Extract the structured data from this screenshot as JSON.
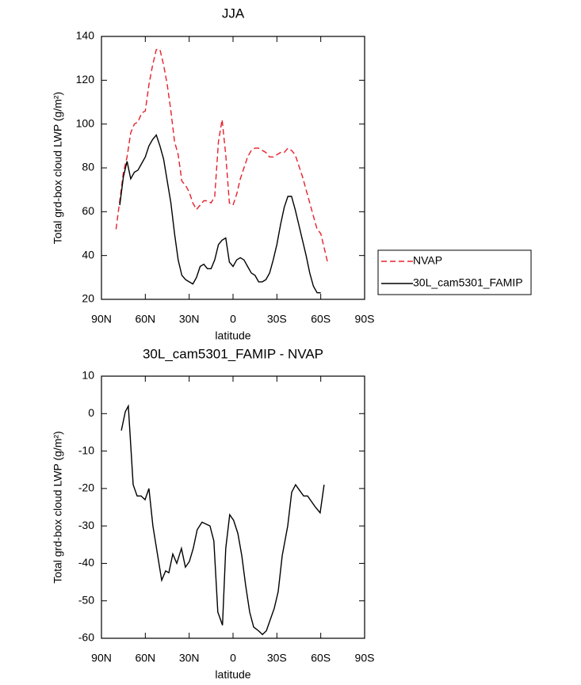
{
  "chart_data": [
    {
      "type": "line",
      "title": "JJA",
      "xlabel": "latitude",
      "ylabel": "Total grd-box cloud LWP (g/m²)",
      "x": [
        80,
        77.5,
        75,
        72.5,
        70,
        67.5,
        65,
        62.5,
        60,
        57.5,
        55,
        52.5,
        50,
        47.5,
        45,
        42.5,
        40,
        37.5,
        35,
        32.5,
        30,
        27.5,
        25,
        22.5,
        20,
        17.5,
        15,
        12.5,
        10,
        7.5,
        5,
        2.5,
        0,
        -2.5,
        -5,
        -7.5,
        -10,
        -12.5,
        -15,
        -17.5,
        -20,
        -22.5,
        -25,
        -27.5,
        -30,
        -32.5,
        -35,
        -37.5,
        -40,
        -42.5,
        -45,
        -47.5,
        -50,
        -52.5,
        -55,
        -57.5,
        -60,
        -62.5,
        -65
      ],
      "series": [
        {
          "name": "NVAP",
          "color": "#e8202a",
          "line_style": "dashed",
          "values": [
            52,
            65,
            78,
            85,
            96,
            100,
            101,
            105,
            106,
            118,
            127,
            134,
            134,
            127,
            118,
            106,
            92,
            86,
            74,
            72,
            69,
            64,
            61,
            63,
            65,
            65,
            64,
            67,
            92,
            102,
            86,
            64,
            63,
            68,
            75,
            80,
            85,
            88,
            89,
            89,
            88,
            87,
            85,
            85,
            86,
            87,
            87,
            89,
            88,
            86,
            81,
            76,
            70,
            64,
            58,
            52,
            50,
            43,
            36
          ]
        },
        {
          "name": "30L_cam5301_FAMIP",
          "color": "#000000",
          "line_style": "solid",
          "values": [
            null,
            63,
            76,
            83,
            75,
            78,
            79,
            82,
            85,
            90,
            93,
            95,
            90,
            84,
            74,
            64,
            50,
            38,
            31,
            29,
            28,
            27,
            30,
            35,
            36,
            34,
            34,
            38,
            45,
            47,
            48,
            37,
            35,
            38,
            39,
            38,
            35,
            32,
            31,
            28,
            28,
            29,
            32,
            38,
            45,
            54,
            62,
            67,
            67,
            61,
            54,
            47,
            40,
            32,
            26,
            23,
            23,
            null,
            null
          ]
        }
      ],
      "xlim": [
        90,
        -90
      ],
      "xticks": [
        {
          "value": 90,
          "label": "90N"
        },
        {
          "value": 60,
          "label": "60N"
        },
        {
          "value": 30,
          "label": "30N"
        },
        0,
        {
          "value": -30,
          "label": "30S"
        },
        {
          "value": -60,
          "label": "60S"
        },
        {
          "value": -90,
          "label": "90S"
        }
      ],
      "ylim": [
        20,
        140
      ],
      "yticks": [
        20,
        40,
        60,
        80,
        100,
        120,
        140
      ],
      "legend": "outside-right"
    },
    {
      "type": "line",
      "title": "30L_cam5301_FAMIP - NVAP",
      "xlabel": "latitude",
      "ylabel": "Total grd-box cloud LWP (g/m²)",
      "x": [
        76.4,
        73.7,
        71.6,
        68.3,
        65.6,
        62.9,
        60.2,
        57.5,
        54.8,
        51.5,
        48.8,
        46.1,
        43.9,
        41.2,
        38.5,
        35.3,
        32.6,
        29.9,
        27.2,
        24.5,
        21.2,
        18.5,
        15.8,
        13.1,
        10.4,
        7.2,
        5,
        2.3,
        -0.4,
        -3.3,
        -6,
        -8.7,
        -11.4,
        -14.1,
        -17.4,
        -20.1,
        -22.8,
        -25.5,
        -28.2,
        -30.9,
        -33.6,
        -37.4,
        -40.1,
        -42.8,
        -45.5,
        -48.3,
        -51,
        -53.7,
        -56.4,
        -59.6,
        -62.3
      ],
      "color": "#000000",
      "values": [
        -4.5,
        0.5,
        2,
        -19,
        -22,
        -22,
        -23,
        -20,
        -30,
        -38,
        -44.5,
        -42,
        -42.5,
        -37.5,
        -40,
        -36,
        -41,
        -39.5,
        -36,
        -31,
        -29,
        -29.5,
        -30,
        -34,
        -53,
        -56.5,
        -36,
        -27,
        -28.5,
        -32,
        -38,
        -46,
        -53,
        -57,
        -58,
        -59,
        -58,
        -55,
        -52,
        -47.5,
        -38,
        -30,
        -21,
        -19,
        -20.5,
        -22,
        -22,
        -23.5,
        -25,
        -26.5,
        -19
      ],
      "xlim": [
        90,
        -90
      ],
      "xticks": [
        {
          "value": 90,
          "label": "90N"
        },
        {
          "value": 60,
          "label": "60N"
        },
        {
          "value": 30,
          "label": "30N"
        },
        0,
        {
          "value": -30,
          "label": "30S"
        },
        {
          "value": -60,
          "label": "60S"
        },
        {
          "value": -90,
          "label": "90S"
        }
      ],
      "ylim": [
        -60,
        10
      ],
      "yticks": [
        -60,
        -50,
        -40,
        -30,
        -20,
        -10,
        0,
        10
      ]
    }
  ]
}
